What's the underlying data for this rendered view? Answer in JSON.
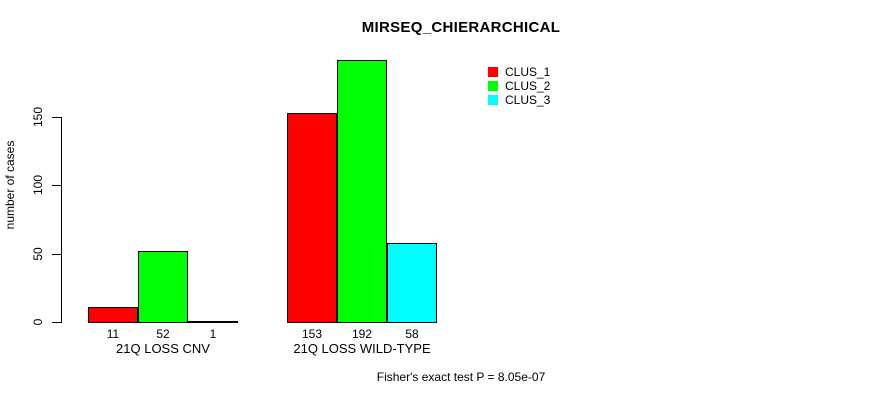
{
  "chart_data": {
    "type": "bar",
    "title": "MIRSEQ_CHIERARCHICAL",
    "ylabel": "number of cases",
    "xlabel": "",
    "categories": [
      "21Q LOSS CNV",
      "21Q LOSS WILD-TYPE"
    ],
    "series": [
      {
        "name": "CLUS_1",
        "color": "#ff0000",
        "values": [
          11,
          153
        ]
      },
      {
        "name": "CLUS_2",
        "color": "#00ff00",
        "values": [
          52,
          192
        ]
      },
      {
        "name": "CLUS_3",
        "color": "#00ffff",
        "values": [
          1,
          58
        ]
      }
    ],
    "bar_value_labels": [
      [
        "11",
        "52",
        "1"
      ],
      [
        "153",
        "192",
        "58"
      ]
    ],
    "y_ticks": [
      0,
      50,
      100,
      150
    ],
    "ylim": [
      0,
      200
    ],
    "grid": false,
    "legend_position": "top-right",
    "legend_entries": [
      "CLUS_1",
      "CLUS_2",
      "CLUS_3"
    ],
    "annotation": "Fisher's exact test P = 8.05e-07"
  },
  "colors": {
    "background": "#ffffff",
    "axis": "#000000",
    "bar_border": "#000000",
    "clus_1": "#ff0000",
    "clus_2": "#00ff00",
    "clus_3": "#00ffff"
  }
}
